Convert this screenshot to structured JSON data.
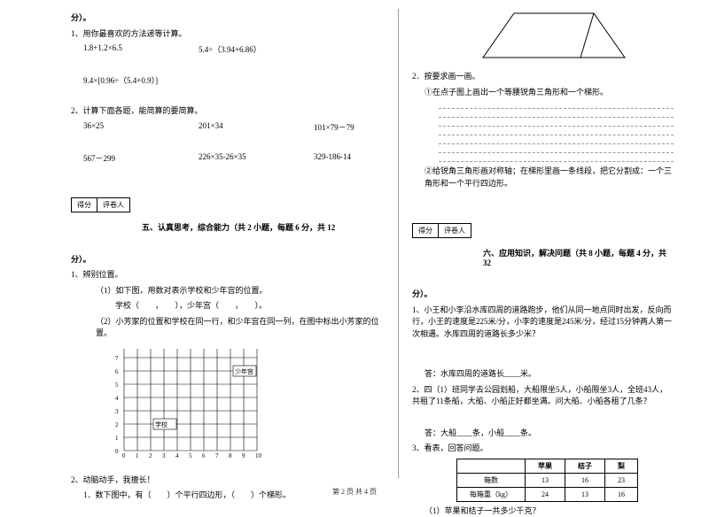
{
  "left": {
    "fen_close": "分）。",
    "q1": {
      "title": "1、用你最喜欢的方法递等计算。",
      "row1": [
        "1.8+1.2×6.5",
        "5.4÷（3.94+6.86）"
      ],
      "row2": [
        "9.4×[0.96÷（5.4+0.9）]"
      ]
    },
    "q2": {
      "title": "2、计算下面各题，能简算的要简算。",
      "row1": [
        "36×25",
        "201×34",
        "101×79－79"
      ],
      "row2": [
        "567－299",
        "226×35-26×35",
        "329-186-14"
      ]
    },
    "scorebox": [
      "得分",
      "评卷人"
    ],
    "section5": "五、认真思考，综合能力（共 2 小题，每题 6 分，共 12",
    "fen_close2": "分）。",
    "q3": {
      "title": "1、辨别位置。",
      "l1": "（1）如下图，用数对表示学校和少年宫的位置。",
      "l2": "学校（　　，　　），少年宫（　　，　　）。",
      "l3": "（2）小芳家的位置和学校在同一行，和少年宫在同一列，在图中标出小芳家的位置。",
      "grid": {
        "rows": 9,
        "cols": 11,
        "school_label": "学校",
        "palace_label": "少年宫",
        "school_pos": [
          3,
          2
        ],
        "palace_pos": [
          9,
          6
        ]
      }
    },
    "q4": {
      "title": "2、动脑动手，我擅长！",
      "l1": "1．数下图中，有（　　）个平行四边形，（　　）个梯形。"
    }
  },
  "right": {
    "trap_note": "2．按要求画一画。",
    "trap_l1": "①在点子图上画出一个等腰锐角三角形和一个梯形。",
    "trap_l2": "②给锐角三角形画对称轴；在梯形里画一条线段，把它分割成：一个三角形和一个平行四边形。",
    "scorebox": [
      "得分",
      "评卷人"
    ],
    "section6": "六、应用知识，解决问题（共 8 小题，每题 4 分，共 32",
    "fen_close": "分）。",
    "p1": {
      "text": "1、小王和小李沿水库四周的道路跑步，他们从同一地点同时出发，反向而行，小王的速度是225米/分，小李的速度是245米/分，经过15分钟两人第一次相遇。水库四周的道路长多少米？",
      "ans": "答：水库四周的道路长____米。"
    },
    "p2": {
      "text": "2、四（1）班同学去公园划船，大船限坐5人，小船限坐3人，全班43人，共租了11条船，大船、小船正好都坐满。问大船、小船各租了几条？",
      "ans": "答：大船____条，小船____条。"
    },
    "p3": {
      "title": "3、看表，回答问题。",
      "table": {
        "headers": [
          "",
          "苹果",
          "桔子",
          "梨"
        ],
        "rows": [
          [
            "箱数",
            "13",
            "16",
            "23"
          ],
          [
            "每箱重（kg）",
            "24",
            "13",
            "16"
          ]
        ]
      },
      "q": "（1）苹果和桔子一共多少千克？"
    }
  },
  "footer": "第 2 页  共 4 页",
  "colors": {
    "text": "#000000",
    "bg": "#ffffff",
    "line": "#999999"
  }
}
